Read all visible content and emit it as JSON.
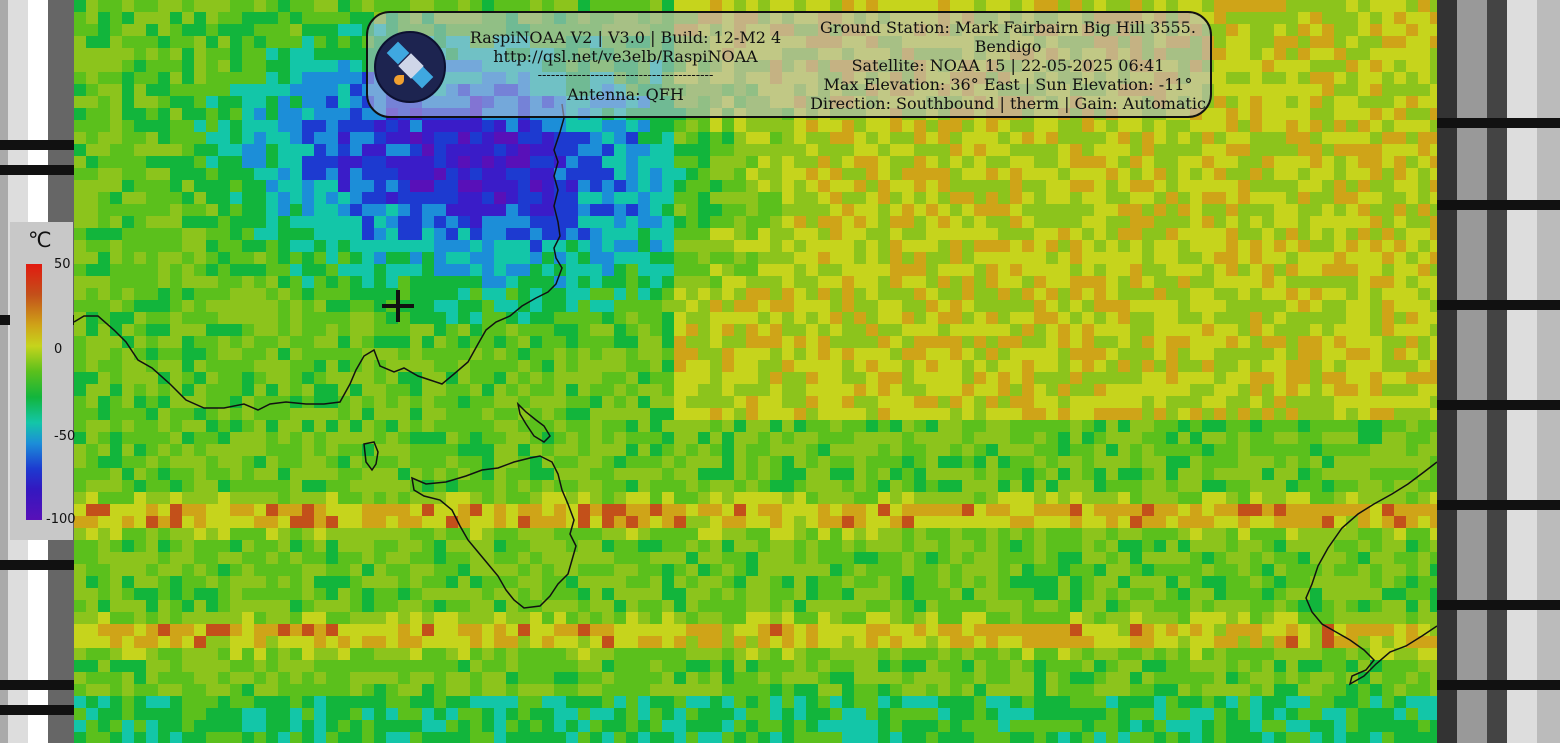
{
  "header": {
    "left_lines": [
      "RaspiNOAA V2 | V3.0 | Build: 12-M2 4",
      "http://qsl.net/ve3elb/RaspiNOAA",
      "----------------------------------------",
      "Antenna: QFH"
    ],
    "right_lines": [
      "Ground Station: Mark Fairbairn Big Hill 3555.",
      "Bendigo",
      "Satellite: NOAA 15 | 22-05-2025 06:41",
      "Max Elevation: 36° East | Sun Elevation: -11°",
      "Direction: Southbound | therm | Gain: Automatic"
    ],
    "logo_icon": "satellite-icon"
  },
  "legend": {
    "unit": "℃",
    "ticks": [
      "50",
      "0",
      "-50",
      "-100"
    ],
    "colors": [
      "#e21a10",
      "#cfa418",
      "#5bc01c",
      "#13c6a8",
      "#1d3ad0",
      "#5810b8"
    ]
  },
  "map": {
    "marker_icon": "crosshair-icon"
  }
}
